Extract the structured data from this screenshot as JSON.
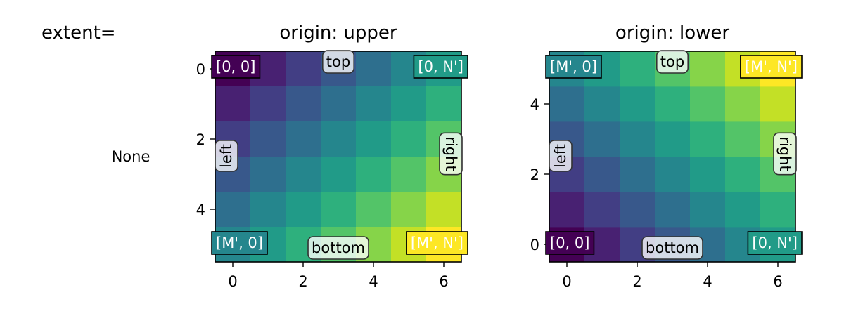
{
  "figure": {
    "row_header": "extent=",
    "row_label": "None"
  },
  "chart_data": [
    {
      "type": "heatmap",
      "title": "origin: upper",
      "origin": "upper",
      "x_ticks": [
        "0",
        "2",
        "4",
        "6"
      ],
      "y_ticks": [
        "0",
        "2",
        "4"
      ],
      "xlim": [
        -0.5,
        6.5
      ],
      "ylim": [
        5.5,
        -0.5
      ],
      "z": [
        [
          0,
          1,
          2,
          3,
          4,
          5,
          6
        ],
        [
          1,
          2,
          3,
          4,
          5,
          6,
          7
        ],
        [
          2,
          3,
          4,
          5,
          6,
          7,
          8
        ],
        [
          3,
          4,
          5,
          6,
          7,
          8,
          9
        ],
        [
          4,
          5,
          6,
          7,
          8,
          9,
          10
        ],
        [
          5,
          6,
          7,
          8,
          9,
          10,
          11
        ]
      ],
      "colormap": "viridis",
      "corner_labels": {
        "top_left": "[0, 0]",
        "top_right": "[0, N']",
        "bottom_left": "[M', 0]",
        "bottom_right": "[M', N']"
      },
      "side_labels": {
        "top": "top",
        "bottom": "bottom",
        "left": "left",
        "right": "right"
      }
    },
    {
      "type": "heatmap",
      "title": "origin: lower",
      "origin": "lower",
      "x_ticks": [
        "0",
        "2",
        "4",
        "6"
      ],
      "y_ticks": [
        "0",
        "2",
        "4"
      ],
      "xlim": [
        -0.5,
        6.5
      ],
      "ylim": [
        -0.5,
        5.5
      ],
      "z": [
        [
          0,
          1,
          2,
          3,
          4,
          5,
          6
        ],
        [
          1,
          2,
          3,
          4,
          5,
          6,
          7
        ],
        [
          2,
          3,
          4,
          5,
          6,
          7,
          8
        ],
        [
          3,
          4,
          5,
          6,
          7,
          8,
          9
        ],
        [
          4,
          5,
          6,
          7,
          8,
          9,
          10
        ],
        [
          5,
          6,
          7,
          8,
          9,
          10,
          11
        ]
      ],
      "colormap": "viridis",
      "corner_labels": {
        "top_left": "[M', 0]",
        "top_right": "[M', N']",
        "bottom_left": "[0, 0]",
        "bottom_right": "[0, N']"
      },
      "side_labels": {
        "top": "top",
        "bottom": "bottom",
        "left": "left",
        "right": "right"
      }
    }
  ]
}
